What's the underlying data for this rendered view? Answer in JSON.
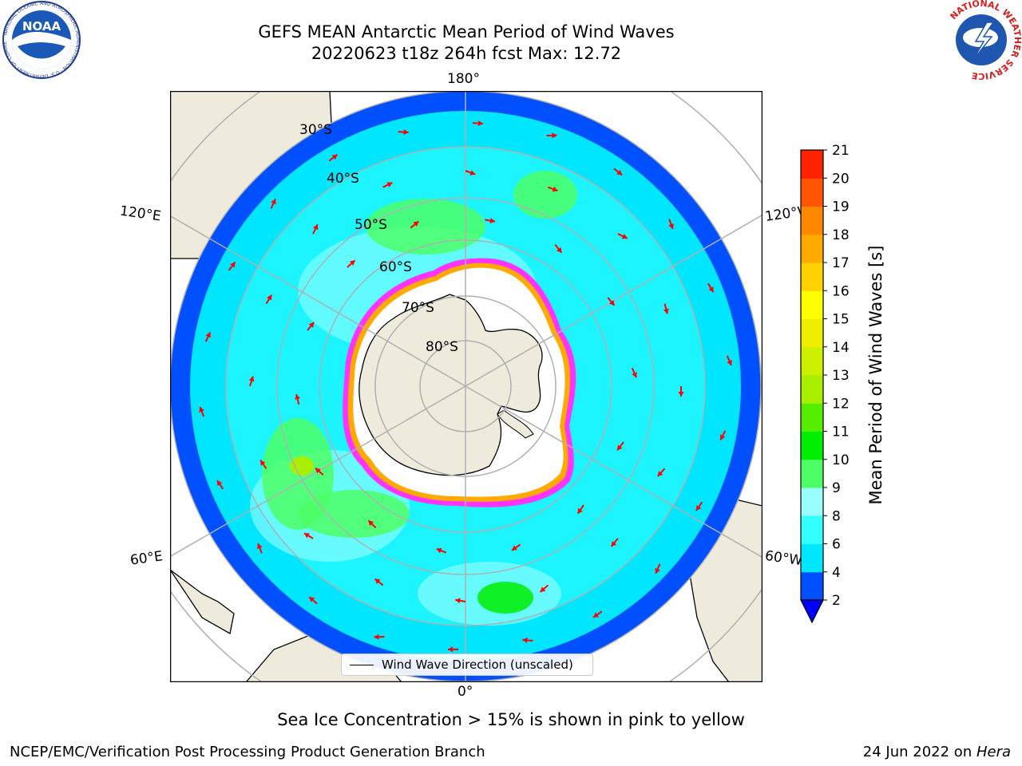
{
  "header": {
    "title_line1": "GEFS MEAN Antarctic Mean Period of Wind Waves",
    "title_line2": "20220623 t18z 264h fcst   Max: 12.72"
  },
  "map": {
    "longitude_labels": {
      "top": "180°",
      "bottom": "0°",
      "upper_left": "120°E",
      "upper_right": "120°W",
      "lower_left": "60°E",
      "lower_right": "60°W"
    },
    "latitude_labels": [
      "30°S",
      "40°S",
      "50°S",
      "60°S",
      "70°S",
      "80°S"
    ],
    "legend_label": "Wind Wave Direction (unscaled)",
    "arrow_color": "#ff0000",
    "land_color": "#efebdc",
    "ice_edge_colors": [
      "#ff33ff",
      "#ff9900",
      "#ffff00"
    ]
  },
  "colorbar": {
    "label": "Mean Period of Wind Waves [s]",
    "ticks": [
      "2",
      "4",
      "6",
      "8",
      "9",
      "10",
      "11",
      "12",
      "13",
      "14",
      "15",
      "16",
      "17",
      "18",
      "19",
      "20",
      "21"
    ],
    "colors": [
      "#0050ff",
      "#00e6ff",
      "#33ffff",
      "#99ffff",
      "#4dff66",
      "#00ee00",
      "#55ee00",
      "#aaee00",
      "#ccf000",
      "#eeee00",
      "#ffff00",
      "#ffd200",
      "#ffaa00",
      "#ff8800",
      "#ff5500",
      "#ff2200"
    ],
    "under_color": "#0000ff"
  },
  "caption": "Sea Ice Concentration > 15% is shown in pink to yellow",
  "footer": {
    "left": "NCEP/EMC/Verification Post Processing Product Generation Branch",
    "right_prefix": "24 Jun 2022 on ",
    "right_machine": "Hera"
  },
  "logos": {
    "noaa_text": "NOAA",
    "noaa_ring_text": "NATIONAL OCEANIC AND ATMOSPHERIC ADMINISTRATION · U.S. DEPARTMENT OF COMMERCE",
    "nws_ring_text": "NATIONAL WEATHER SERVICE"
  }
}
